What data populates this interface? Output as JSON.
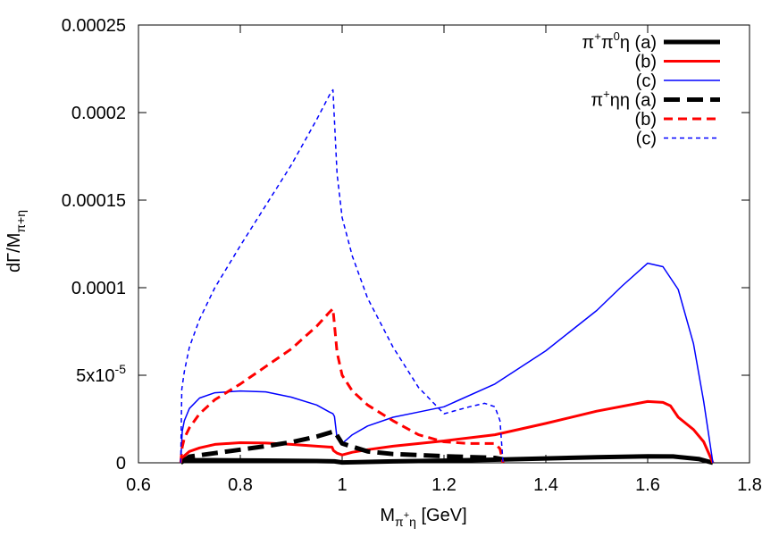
{
  "chart_data": {
    "type": "line",
    "xlabel": {
      "main": "M",
      "sub_base": "π",
      "sub_sup": "+",
      "sub_tail": "η",
      "unit": " [GeV]"
    },
    "ylabel": {
      "main": "dΓ/M",
      "sub": "π+η"
    },
    "xlim": [
      0.6,
      1.8
    ],
    "ylim": [
      0,
      0.00025
    ],
    "x_ticks": [
      {
        "value": 0.6,
        "label": "0.6"
      },
      {
        "value": 0.8,
        "label": "0.8"
      },
      {
        "value": 1.0,
        "label": "1"
      },
      {
        "value": 1.2,
        "label": "1.2"
      },
      {
        "value": 1.4,
        "label": "1.4"
      },
      {
        "value": 1.6,
        "label": "1.6"
      },
      {
        "value": 1.8,
        "label": "1.8"
      }
    ],
    "y_ticks": [
      {
        "value": 0,
        "label": "0"
      },
      {
        "value": 5e-05,
        "label": "5x10",
        "sup": "-5"
      },
      {
        "value": 0.0001,
        "label": "0.0001"
      },
      {
        "value": 0.00015,
        "label": "0.00015"
      },
      {
        "value": 0.0002,
        "label": "0.0002"
      },
      {
        "value": 0.00025,
        "label": "0.00025"
      }
    ],
    "grid": false,
    "legend_position": "top-right",
    "legend_groups": [
      {
        "group": "π+π0η",
        "base": "π",
        "sup1": "+",
        "mid": "π",
        "sup2": "0",
        "tail": "η"
      },
      {
        "group": "π+ηη",
        "base": "π",
        "sup1": "+",
        "mid": "ηη",
        "sup2": "",
        "tail": ""
      }
    ],
    "series": [
      {
        "name": "(a)",
        "group": 0,
        "color": "#000000",
        "width": 5,
        "dash": "",
        "points": [
          [
            0.683,
            1.5e-06
          ],
          [
            0.75,
            1.5e-06
          ],
          [
            0.85,
            1.3e-06
          ],
          [
            0.95,
            1e-06
          ],
          [
            0.985,
            8e-07
          ],
          [
            1.0,
            2e-07
          ],
          [
            1.05,
            5e-07
          ],
          [
            1.1,
            8e-07
          ],
          [
            1.2,
            1.2e-06
          ],
          [
            1.3,
            1.8e-06
          ],
          [
            1.4,
            2.5e-06
          ],
          [
            1.5,
            3.2e-06
          ],
          [
            1.6,
            3.7e-06
          ],
          [
            1.65,
            3.6e-06
          ],
          [
            1.7,
            2.2e-06
          ],
          [
            1.728,
            0.0
          ]
        ]
      },
      {
        "name": "(b)",
        "group": 0,
        "color": "#ff0000",
        "width": 3,
        "dash": "",
        "points": [
          [
            0.683,
            0.0
          ],
          [
            0.69,
            4e-06
          ],
          [
            0.7,
            6.5e-06
          ],
          [
            0.72,
            8.5e-06
          ],
          [
            0.75,
            1.05e-05
          ],
          [
            0.8,
            1.15e-05
          ],
          [
            0.85,
            1.13e-05
          ],
          [
            0.9,
            1.05e-05
          ],
          [
            0.95,
            9.5e-06
          ],
          [
            0.975,
            9e-06
          ],
          [
            0.98,
            9e-06
          ],
          [
            0.983,
            7e-06
          ],
          [
            0.99,
            5.5e-06
          ],
          [
            1.0,
            4.5e-06
          ],
          [
            1.02,
            6e-06
          ],
          [
            1.05,
            7.5e-06
          ],
          [
            1.1,
            9.5e-06
          ],
          [
            1.2,
            1.25e-05
          ],
          [
            1.3,
            1.6e-05
          ],
          [
            1.4,
            2.25e-05
          ],
          [
            1.5,
            2.95e-05
          ],
          [
            1.6,
            3.5e-05
          ],
          [
            1.63,
            3.45e-05
          ],
          [
            1.645,
            3.25e-05
          ],
          [
            1.66,
            2.6e-05
          ],
          [
            1.69,
            1.9e-05
          ],
          [
            1.71,
            1.2e-05
          ],
          [
            1.728,
            0.0
          ]
        ]
      },
      {
        "name": "(c)",
        "group": 0,
        "color": "#0000ff",
        "width": 1.5,
        "dash": "",
        "points": [
          [
            0.683,
            0.0
          ],
          [
            0.686,
            1.8e-05
          ],
          [
            0.69,
            2.4e-05
          ],
          [
            0.7,
            3.1e-05
          ],
          [
            0.72,
            3.7e-05
          ],
          [
            0.75,
            4e-05
          ],
          [
            0.8,
            4.1e-05
          ],
          [
            0.85,
            4.05e-05
          ],
          [
            0.9,
            3.75e-05
          ],
          [
            0.95,
            3.3e-05
          ],
          [
            0.975,
            2.9e-05
          ],
          [
            0.982,
            2.8e-05
          ],
          [
            0.985,
            2.65e-05
          ],
          [
            0.99,
            1.4e-05
          ],
          [
            1.0,
            1.1e-05
          ],
          [
            1.02,
            1.6e-05
          ],
          [
            1.05,
            2.1e-05
          ],
          [
            1.1,
            2.6e-05
          ],
          [
            1.15,
            2.9e-05
          ],
          [
            1.2,
            3.2e-05
          ],
          [
            1.3,
            4.5e-05
          ],
          [
            1.4,
            6.4e-05
          ],
          [
            1.5,
            8.7e-05
          ],
          [
            1.55,
            0.000101
          ],
          [
            1.6,
            0.000114
          ],
          [
            1.63,
            0.000112
          ],
          [
            1.66,
            9.9e-05
          ],
          [
            1.69,
            6.8e-05
          ],
          [
            1.71,
            3.5e-05
          ],
          [
            1.728,
            0.0
          ]
        ]
      },
      {
        "name": "(a)",
        "group": 1,
        "color": "#000000",
        "width": 5,
        "dash": "18,8",
        "points": [
          [
            0.683,
            0.0
          ],
          [
            0.7,
            3.5e-06
          ],
          [
            0.75,
            5.5e-06
          ],
          [
            0.8,
            7.5e-06
          ],
          [
            0.85,
            9.5e-06
          ],
          [
            0.9,
            1.18e-05
          ],
          [
            0.95,
            1.5e-05
          ],
          [
            0.985,
            1.8e-05
          ],
          [
            1.0,
            1.1e-05
          ],
          [
            1.05,
            6.5e-06
          ],
          [
            1.1,
            5e-06
          ],
          [
            1.2,
            3.8e-06
          ],
          [
            1.3,
            2.8e-06
          ],
          [
            1.316,
            2e-06
          ]
        ]
      },
      {
        "name": "(b)",
        "group": 1,
        "color": "#ff0000",
        "width": 3,
        "dash": "10,6",
        "points": [
          [
            0.683,
            0.0
          ],
          [
            0.686,
            9e-06
          ],
          [
            0.69,
            1.4e-05
          ],
          [
            0.7,
            2e-05
          ],
          [
            0.72,
            2.8e-05
          ],
          [
            0.75,
            3.6e-05
          ],
          [
            0.8,
            4.5e-05
          ],
          [
            0.85,
            5.5e-05
          ],
          [
            0.9,
            6.5e-05
          ],
          [
            0.95,
            7.8e-05
          ],
          [
            0.975,
            8.6e-05
          ],
          [
            0.982,
            8.8e-05
          ],
          [
            0.99,
            6.3e-05
          ],
          [
            1.0,
            5e-05
          ],
          [
            1.02,
            4.1e-05
          ],
          [
            1.05,
            3.3e-05
          ],
          [
            1.1,
            2.4e-05
          ],
          [
            1.15,
            1.6e-05
          ],
          [
            1.2,
            1.2e-05
          ],
          [
            1.25,
            1.1e-05
          ],
          [
            1.3,
            1.1e-05
          ],
          [
            1.31,
            8e-06
          ],
          [
            1.316,
            0.0
          ]
        ]
      },
      {
        "name": "(c)",
        "group": 1,
        "color": "#0000ff",
        "width": 1.5,
        "dash": "5,4",
        "points": [
          [
            0.683,
            0.0
          ],
          [
            0.685,
            4.2e-05
          ],
          [
            0.69,
            5.2e-05
          ],
          [
            0.7,
            6.6e-05
          ],
          [
            0.72,
            8.2e-05
          ],
          [
            0.75,
            0.0001
          ],
          [
            0.8,
            0.000124
          ],
          [
            0.85,
            0.000147
          ],
          [
            0.9,
            0.00017
          ],
          [
            0.95,
            0.000196
          ],
          [
            0.975,
            0.00021
          ],
          [
            0.982,
            0.000213
          ],
          [
            0.99,
            0.000165
          ],
          [
            1.0,
            0.00014
          ],
          [
            1.02,
            0.000118
          ],
          [
            1.05,
            9.4e-05
          ],
          [
            1.1,
            6.6e-05
          ],
          [
            1.15,
            4.3e-05
          ],
          [
            1.2,
            2.8e-05
          ],
          [
            1.25,
            3.2e-05
          ],
          [
            1.28,
            3.4e-05
          ],
          [
            1.3,
            3.2e-05
          ],
          [
            1.31,
            2.4e-05
          ],
          [
            1.316,
            0.0
          ]
        ]
      }
    ]
  }
}
